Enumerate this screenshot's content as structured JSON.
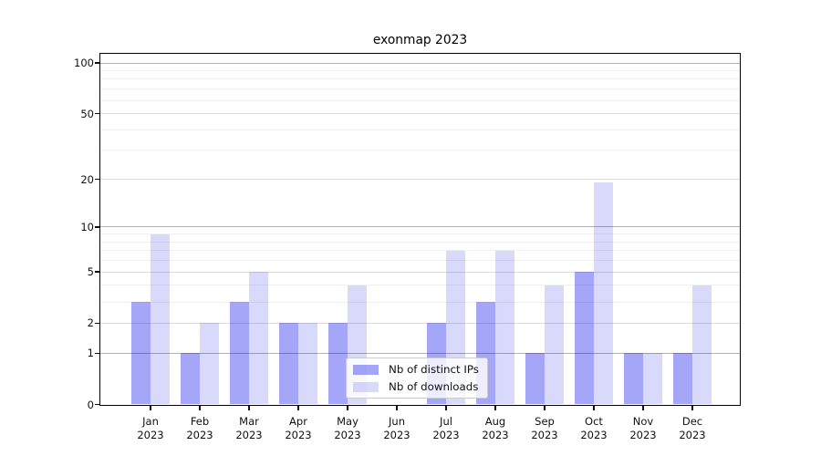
{
  "title": "exonmap 2023",
  "chart_data": {
    "type": "bar",
    "title": "exonmap 2023",
    "scale": "log1p",
    "grid": true,
    "categories": [
      "Jan",
      "Feb",
      "Mar",
      "Apr",
      "May",
      "Jun",
      "Jul",
      "Aug",
      "Sep",
      "Oct",
      "Nov",
      "Dec"
    ],
    "x_sublabel_year": "2023",
    "series": [
      {
        "name": "Nb of distinct IPs",
        "color": "rgba(0,0,238,0.35)",
        "values": [
          3,
          1,
          3,
          2,
          2,
          0,
          2,
          3,
          1,
          5,
          1,
          1
        ]
      },
      {
        "name": "Nb of downloads",
        "color": "rgba(0,0,238,0.15)",
        "values": [
          9,
          2,
          5,
          2,
          4,
          0,
          7,
          7,
          4,
          19,
          1,
          4
        ]
      }
    ],
    "yticks": [
      0,
      1,
      2,
      5,
      10,
      20,
      50,
      100
    ],
    "ylim": [
      0,
      113
    ],
    "gridlines": {
      "major": [
        1,
        10,
        100
      ],
      "mid": [
        2,
        5,
        20,
        50
      ],
      "minor": [
        3,
        4,
        6,
        7,
        8,
        9,
        30,
        40,
        60,
        70,
        80,
        90
      ]
    },
    "legend": {
      "position": "lower-center-inside",
      "entries": [
        "Nb of distinct IPs",
        "Nb of downloads"
      ]
    }
  }
}
